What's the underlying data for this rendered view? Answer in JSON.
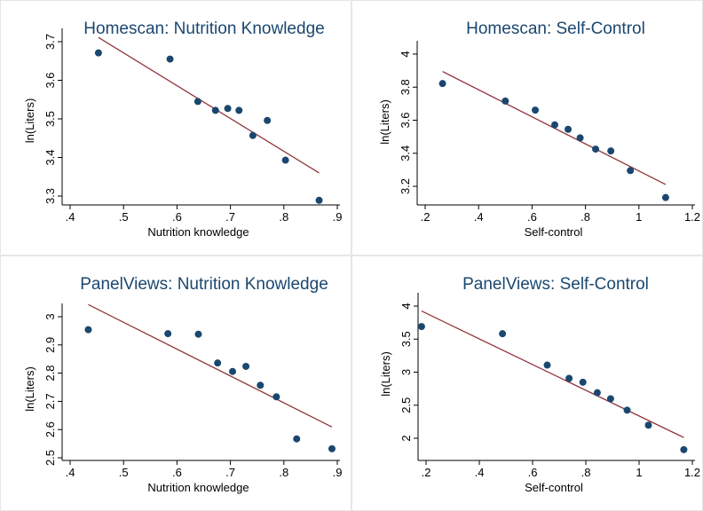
{
  "colors": {
    "marker": "#1a476f",
    "fit_line": "#90353b",
    "title": "#1a476f",
    "frame": "#e6e6e6"
  },
  "chart_data": [
    {
      "type": "scatter",
      "title": "Homescan: Nutrition Knowledge",
      "xlabel": "Nutrition knowledge",
      "ylabel": "ln(Liters)",
      "xlim": [
        0.4,
        0.9
      ],
      "ylim": [
        3.3,
        3.7
      ],
      "xticks": [
        0.4,
        0.5,
        0.6,
        0.7,
        0.8,
        0.9
      ],
      "xtick_labels": [
        ".4",
        ".5",
        ".6",
        ".7",
        ".8",
        ".9"
      ],
      "yticks": [
        3.3,
        3.4,
        3.5,
        3.6,
        3.7
      ],
      "ytick_labels": [
        "3.3",
        "3.4",
        "3.5",
        "3.6",
        "3.7"
      ],
      "points": {
        "x": [
          0.453,
          0.587,
          0.639,
          0.672,
          0.695,
          0.716,
          0.742,
          0.769,
          0.803,
          0.866
        ],
        "y": [
          3.671,
          3.655,
          3.545,
          3.522,
          3.527,
          3.522,
          3.457,
          3.496,
          3.393,
          3.289
        ]
      },
      "fit_line": {
        "x": [
          0.453,
          0.866
        ],
        "y": [
          3.711,
          3.36
        ]
      }
    },
    {
      "type": "scatter",
      "title": "Homescan: Self-Control",
      "xlabel": "Self-control",
      "ylabel": "ln(Liters)",
      "xlim": [
        0.2,
        1.2
      ],
      "ylim": [
        3.2,
        4.0
      ],
      "xticks": [
        0.2,
        0.4,
        0.6,
        0.8,
        1.0,
        1.2
      ],
      "xtick_labels": [
        ".2",
        ".4",
        ".6",
        ".8",
        "1",
        "1.2"
      ],
      "yticks": [
        3.2,
        3.4,
        3.6,
        3.8,
        4.0
      ],
      "ytick_labels": [
        "3.2",
        "3.4",
        "3.6",
        "3.8",
        "4"
      ],
      "points": {
        "x": [
          0.265,
          0.5,
          0.612,
          0.685,
          0.735,
          0.78,
          0.838,
          0.895,
          0.968,
          1.1
        ],
        "y": [
          3.822,
          3.716,
          3.661,
          3.572,
          3.545,
          3.493,
          3.425,
          3.414,
          3.295,
          3.132
        ]
      },
      "fit_line": {
        "x": [
          0.265,
          1.1
        ],
        "y": [
          3.895,
          3.211
        ]
      }
    },
    {
      "type": "scatter",
      "title": "PanelViews: Nutrition Knowledge",
      "xlabel": "Nutrition knowledge",
      "ylabel": "ln(Liters)",
      "xlim": [
        0.4,
        0.9
      ],
      "ylim": [
        2.5,
        3.0
      ],
      "xticks": [
        0.4,
        0.5,
        0.6,
        0.7,
        0.8,
        0.9
      ],
      "xtick_labels": [
        ".4",
        ".5",
        ".6",
        ".7",
        ".8",
        ".9"
      ],
      "yticks": [
        2.5,
        2.6,
        2.7,
        2.8,
        2.9,
        3.0
      ],
      "ytick_labels": [
        "2.5",
        "2.6",
        "2.7",
        "2.8",
        "2.9",
        "3"
      ],
      "points": {
        "x": [
          0.434,
          0.583,
          0.64,
          0.676,
          0.704,
          0.729,
          0.756,
          0.786,
          0.824,
          0.89
        ],
        "y": [
          2.954,
          2.94,
          2.938,
          2.836,
          2.806,
          2.824,
          2.757,
          2.716,
          2.567,
          2.532
        ]
      },
      "fit_line": {
        "x": [
          0.434,
          0.89
        ],
        "y": [
          3.043,
          2.609
        ]
      }
    },
    {
      "type": "scatter",
      "title": "PanelViews: Self-Control",
      "xlabel": "Self-control",
      "ylabel": "ln(Liters)",
      "xlim": [
        0.2,
        1.2
      ],
      "ylim": [
        2.0,
        4.0
      ],
      "xticks": [
        0.2,
        0.4,
        0.6,
        0.8,
        1.0,
        1.2
      ],
      "xtick_labels": [
        ".2",
        ".4",
        ".6",
        ".8",
        "1",
        "1.2"
      ],
      "yticks": [
        2.0,
        2.5,
        3.0,
        3.5,
        4.0
      ],
      "ytick_labels": [
        "2",
        "2.5",
        "3",
        "3.5",
        "4"
      ],
      "points": {
        "x": [
          0.183,
          0.487,
          0.655,
          0.737,
          0.789,
          0.843,
          0.893,
          0.955,
          1.035,
          1.168
        ],
        "y": [
          3.69,
          3.582,
          3.107,
          2.906,
          2.848,
          2.689,
          2.598,
          2.425,
          2.198,
          1.828
        ]
      },
      "fit_line": {
        "x": [
          0.183,
          1.168
        ],
        "y": [
          3.925,
          2.011
        ]
      }
    }
  ]
}
